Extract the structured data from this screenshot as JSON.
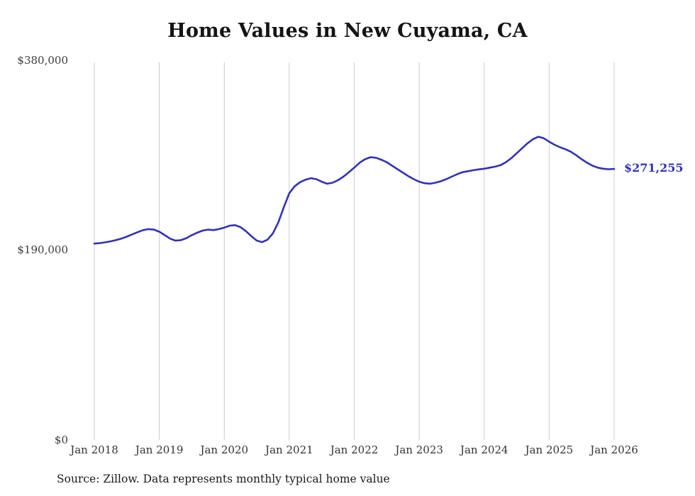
{
  "chart_data": {
    "type": "line",
    "title": "Home Values in New Cuyama, CA",
    "source_note": "Source: Zillow. Data represents monthly typical home value",
    "end_label": "$271,255",
    "end_value": 271255,
    "line_color": "#3232b4",
    "grid_color": "#cccccc",
    "ylim": [
      0,
      380000
    ],
    "y_tick_values": [
      380000,
      190000,
      0
    ],
    "y_tick_labels": [
      "$380,000",
      "$190,000",
      "$0"
    ],
    "x_tick_labels": [
      "Jan 2018",
      "Jan 2019",
      "Jan 2020",
      "Jan 2021",
      "Jan 2022",
      "Jan 2023",
      "Jan 2024",
      "Jan 2025",
      "Jan 2026"
    ],
    "x_start": "2018-01",
    "x_end": "2026-01",
    "x_unit": "month",
    "ylabel": "",
    "xlabel": "",
    "grid": "vertical-only",
    "legend": "none",
    "values": [
      196500,
      197000,
      197800,
      198800,
      200000,
      201500,
      203500,
      205800,
      208000,
      210000,
      211000,
      210500,
      208500,
      205000,
      201500,
      199500,
      200000,
      202000,
      205000,
      207500,
      209500,
      210500,
      210000,
      211000,
      212500,
      214500,
      215000,
      213000,
      209000,
      204000,
      199500,
      198000,
      200500,
      207000,
      218000,
      233000,
      247000,
      254000,
      258000,
      260500,
      262000,
      261000,
      258500,
      256500,
      257500,
      260000,
      263500,
      268000,
      272500,
      277500,
      281000,
      283000,
      282500,
      280500,
      278000,
      274500,
      271000,
      267500,
      264000,
      261000,
      258500,
      257000,
      256500,
      257500,
      259000,
      261000,
      263500,
      266000,
      268000,
      269000,
      270000,
      270800,
      271500,
      272500,
      273500,
      275000,
      278000,
      282000,
      287000,
      292000,
      297000,
      301000,
      303500,
      302000,
      298500,
      295500,
      293000,
      291000,
      288500,
      285000,
      281000,
      277500,
      274500,
      272500,
      271500,
      271000,
      271255
    ]
  }
}
